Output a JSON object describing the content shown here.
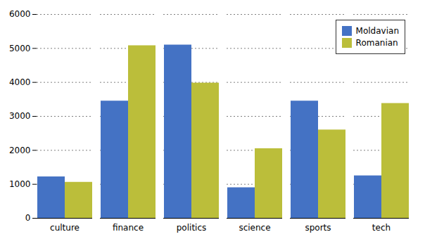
{
  "chart_data": {
    "type": "bar",
    "categories": [
      "culture",
      "finance",
      "politics",
      "science",
      "sports",
      "tech"
    ],
    "series": [
      {
        "name": "Moldavian",
        "color": "#4472C4",
        "values": [
          1220,
          3450,
          5100,
          900,
          3450,
          1250
        ]
      },
      {
        "name": "Romanian",
        "color": "#BBBE3A",
        "values": [
          1060,
          5080,
          3980,
          2050,
          2600,
          3380
        ]
      }
    ],
    "ylim": [
      0,
      6000
    ],
    "yticks": [
      0,
      1000,
      2000,
      3000,
      4000,
      5000,
      6000
    ],
    "grid": true,
    "legend": "upper right"
  }
}
